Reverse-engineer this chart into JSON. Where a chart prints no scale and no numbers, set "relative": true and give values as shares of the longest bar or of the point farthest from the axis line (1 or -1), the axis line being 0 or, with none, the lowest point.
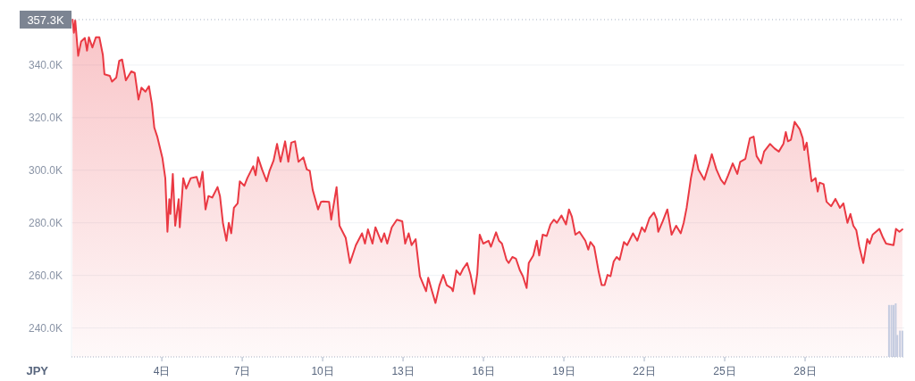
{
  "chart_data": [
    {
      "type": "area",
      "ylabel": "JPY",
      "x": [
        0.67,
        0.72,
        0.77,
        0.88,
        0.99,
        1.13,
        1.21,
        1.28,
        1.41,
        1.54,
        1.67,
        1.8,
        1.86,
        2.06,
        2.14,
        2.3,
        2.41,
        2.52,
        2.66,
        2.86,
        2.99,
        3.13,
        3.24,
        3.39,
        3.52,
        3.63,
        3.72,
        3.83,
        4.02,
        4.13,
        4.21,
        4.28,
        4.32,
        4.41,
        4.5,
        4.63,
        4.67,
        4.8,
        4.91,
        5.08,
        5.3,
        5.41,
        5.52,
        5.63,
        5.74,
        5.88,
        6.08,
        6.17,
        6.28,
        6.41,
        6.5,
        6.59,
        6.69,
        6.83,
        6.91,
        7.08,
        7.19,
        7.41,
        7.5,
        7.59,
        7.74,
        7.91,
        8.02,
        8.17,
        8.3,
        8.43,
        8.6,
        8.72,
        8.83,
        8.97,
        9.1,
        9.28,
        9.41,
        9.52,
        9.63,
        9.83,
        9.94,
        10.02,
        10.24,
        10.32,
        10.52,
        10.63,
        10.86,
        11.02,
        11.24,
        11.47,
        11.58,
        11.69,
        11.86,
        11.97,
        12.19,
        12.3,
        12.41,
        12.58,
        12.77,
        12.97,
        13.08,
        13.21,
        13.32,
        13.47,
        13.63,
        13.86,
        13.94,
        14.08,
        14.21,
        14.36,
        14.5,
        14.63,
        14.8,
        14.86,
        14.99,
        15.13,
        15.24,
        15.39,
        15.52,
        15.66,
        15.77,
        15.86,
        15.99,
        16.19,
        16.28,
        16.47,
        16.58,
        16.69,
        16.86,
        16.94,
        17.08,
        17.21,
        17.36,
        17.47,
        17.61,
        17.69,
        17.86,
        17.99,
        18.08,
        18.21,
        18.36,
        18.5,
        18.63,
        18.74,
        18.91,
        19.08,
        19.19,
        19.3,
        19.43,
        19.58,
        19.8,
        19.91,
        19.99,
        20.13,
        20.3,
        20.41,
        20.52,
        20.63,
        20.74,
        20.86,
        20.97,
        21.08,
        21.24,
        21.36,
        21.58,
        21.74,
        21.91,
        22.02,
        22.19,
        22.36,
        22.47,
        22.52,
        22.69,
        22.86,
        23.02,
        23.19,
        23.36,
        23.47,
        23.58,
        23.74,
        23.91,
        24.02,
        24.24,
        24.41,
        24.52,
        24.69,
        24.86,
        24.99,
        25.13,
        25.3,
        25.47,
        25.58,
        25.77,
        25.94,
        26.08,
        26.19,
        26.36,
        26.47,
        26.69,
        26.86,
        27.02,
        27.19,
        27.28,
        27.36,
        27.47,
        27.61,
        27.8,
        27.91,
        27.97,
        28.06,
        28.17,
        28.24,
        28.39,
        28.47,
        28.54,
        28.69,
        28.8,
        28.97,
        29.13,
        29.3,
        29.43,
        29.58,
        29.69,
        29.8,
        29.91,
        30.02,
        30.17,
        30.32,
        30.41,
        30.52,
        30.77,
        30.91,
        31.02,
        31.3,
        31.39,
        31.52,
        31.63
      ],
      "series": [
        {
          "color": "#ea3943",
          "values": [
            357300,
            352300,
            357000,
            343500,
            349000,
            350300,
            345500,
            350600,
            346700,
            350600,
            350600,
            343900,
            336500,
            335900,
            333700,
            335200,
            341600,
            342100,
            334200,
            337600,
            337000,
            326900,
            331400,
            329900,
            332000,
            325200,
            316200,
            312800,
            304800,
            297000,
            276600,
            289000,
            283400,
            298600,
            278900,
            289000,
            278300,
            297000,
            293000,
            297000,
            297500,
            293600,
            299400,
            285100,
            290200,
            289600,
            293600,
            290200,
            280000,
            273200,
            280000,
            276000,
            285700,
            287400,
            295800,
            294100,
            297000,
            301500,
            298100,
            304900,
            300300,
            295800,
            299800,
            303700,
            310000,
            303200,
            311000,
            303200,
            310500,
            311000,
            303200,
            304900,
            300300,
            299800,
            292500,
            285100,
            288000,
            288100,
            288000,
            281200,
            293600,
            278900,
            274300,
            264700,
            271500,
            276000,
            272100,
            277500,
            272100,
            278300,
            272700,
            276000,
            272100,
            278300,
            281200,
            280600,
            272100,
            276000,
            271500,
            273800,
            259700,
            254000,
            259100,
            254000,
            249500,
            256300,
            260200,
            256300,
            255200,
            254000,
            261900,
            260200,
            262500,
            264700,
            260200,
            252900,
            260800,
            275500,
            272100,
            273200,
            270900,
            276400,
            273200,
            272100,
            265900,
            264700,
            267000,
            266400,
            261900,
            259700,
            255200,
            264700,
            267600,
            273200,
            267600,
            275500,
            275000,
            279400,
            281200,
            280000,
            282800,
            279400,
            285100,
            282300,
            275500,
            276600,
            273200,
            269800,
            272700,
            270900,
            261300,
            256300,
            256300,
            260200,
            259700,
            265300,
            267000,
            265900,
            272700,
            271500,
            276000,
            273200,
            278300,
            276600,
            281700,
            283900,
            281200,
            276600,
            280600,
            285100,
            275500,
            278900,
            276000,
            280000,
            285700,
            297000,
            305800,
            300300,
            296400,
            302000,
            306100,
            300300,
            296400,
            294700,
            298100,
            302600,
            298600,
            303200,
            304300,
            312200,
            312800,
            305400,
            302600,
            307100,
            310000,
            308300,
            307100,
            310000,
            314500,
            311000,
            311600,
            318400,
            315600,
            312200,
            307700,
            310500,
            301500,
            295800,
            297000,
            291900,
            295300,
            294700,
            288000,
            286300,
            289100,
            285700,
            287400,
            280000,
            283400,
            278900,
            277200,
            271000,
            264700,
            273800,
            272100,
            275500,
            277700,
            274300,
            272100,
            271500,
            277700,
            276600,
            277500
          ]
        }
      ],
      "xlim": [
        0.63,
        31.7
      ],
      "ylim": [
        229000,
        360000
      ],
      "xticks": [
        {
          "value": 4,
          "label": "4日"
        },
        {
          "value": 7,
          "label": "7日"
        },
        {
          "value": 10,
          "label": "10日"
        },
        {
          "value": 13,
          "label": "13日"
        },
        {
          "value": 16,
          "label": "16日"
        },
        {
          "value": 19,
          "label": "19日"
        },
        {
          "value": 22,
          "label": "22日"
        },
        {
          "value": 25,
          "label": "25日"
        },
        {
          "value": 28,
          "label": "28日"
        }
      ],
      "yticks": [
        {
          "value": 240000,
          "label": "240.0K"
        },
        {
          "value": 260000,
          "label": "260.0K"
        },
        {
          "value": 280000,
          "label": "280.0K"
        },
        {
          "value": 300000,
          "label": "300.0K"
        },
        {
          "value": 320000,
          "label": "320.0K"
        },
        {
          "value": 340000,
          "label": "340.0K"
        }
      ],
      "grid": "y",
      "line_style": "solid",
      "marker": "none",
      "ref_lines": [
        {
          "axis": "y",
          "value": 357300,
          "label": "357.3K",
          "color": "#a6b0c3",
          "line_style": "dotted"
        }
      ]
    },
    {
      "type": "bar",
      "relative": true,
      "xlim": [
        0.63,
        31.7
      ],
      "x": [
        31.13,
        31.22,
        31.3,
        31.38,
        31.44,
        31.54,
        31.63
      ],
      "series": [
        {
          "color": "#c5cce0",
          "values": [
            0.97,
            0.97,
            0.97,
            1,
            0.41,
            0.49,
            0.49
          ]
        }
      ]
    }
  ]
}
